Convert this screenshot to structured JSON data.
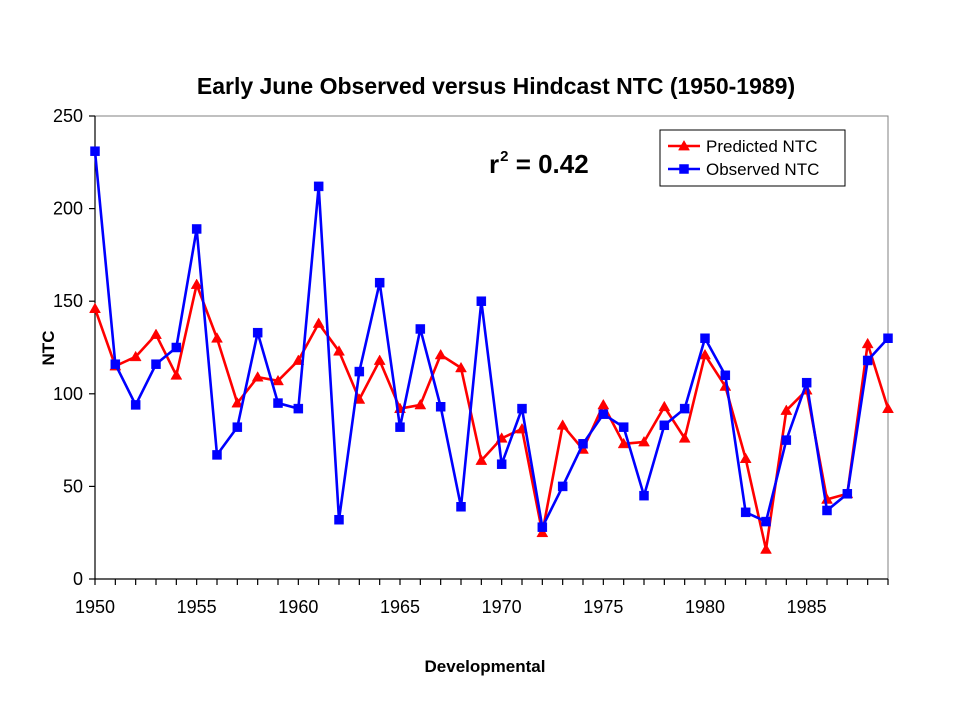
{
  "chart_data": {
    "type": "line",
    "title": "Early June Observed versus Hindcast NTC (1950-1989)",
    "xlabel": "Developmental",
    "ylabel": "NTC",
    "xlim": [
      1950,
      1989
    ],
    "ylim": [
      0,
      250
    ],
    "x_ticks": [
      "1950",
      "1955",
      "1960",
      "1965",
      "1970",
      "1975",
      "1980",
      "1985"
    ],
    "y_ticks": [
      "0",
      "50",
      "100",
      "150",
      "200",
      "250"
    ],
    "grid": false,
    "legend_position": "top-right",
    "annotation": {
      "prefix": "r",
      "superscript": "2",
      "suffix": " = 0.42"
    },
    "x": [
      1950,
      1951,
      1952,
      1953,
      1954,
      1955,
      1956,
      1957,
      1958,
      1959,
      1960,
      1961,
      1962,
      1963,
      1964,
      1965,
      1966,
      1967,
      1968,
      1969,
      1970,
      1971,
      1972,
      1973,
      1974,
      1975,
      1976,
      1977,
      1978,
      1979,
      1980,
      1981,
      1982,
      1983,
      1984,
      1985,
      1986,
      1987,
      1988,
      1989
    ],
    "series": [
      {
        "name": "Predicted NTC",
        "color": "#ff0000",
        "marker": "triangle",
        "values": [
          146,
          115,
          120,
          132,
          110,
          159,
          130,
          95,
          109,
          107,
          118,
          138,
          123,
          97,
          118,
          92,
          94,
          121,
          114,
          64,
          76,
          81,
          25,
          83,
          70,
          94,
          73,
          74,
          93,
          76,
          121,
          104,
          65,
          16,
          91,
          102,
          43,
          46,
          127,
          92
        ]
      },
      {
        "name": "Observed NTC",
        "color": "#0000ff",
        "marker": "square",
        "values": [
          231,
          116,
          94,
          116,
          125,
          189,
          67,
          82,
          133,
          95,
          92,
          212,
          32,
          112,
          160,
          82,
          135,
          93,
          39,
          150,
          62,
          92,
          28,
          50,
          73,
          89,
          82,
          45,
          83,
          92,
          130,
          110,
          36,
          31,
          75,
          106,
          37,
          46,
          118,
          130
        ]
      }
    ]
  }
}
